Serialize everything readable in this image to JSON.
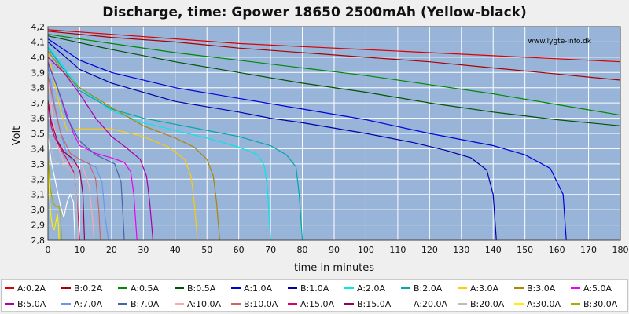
{
  "chart_data": {
    "type": "line",
    "title": "Discharge, time: Gpower 18650 2500mAh (Yellow-black)",
    "xlabel": "time in minutes",
    "ylabel": "Volt",
    "watermark": "www.lygte-info.dk",
    "xlim": [
      0,
      180
    ],
    "ylim": [
      2.8,
      4.2
    ],
    "xticks": [
      0,
      10,
      20,
      30,
      40,
      50,
      60,
      70,
      80,
      90,
      100,
      110,
      120,
      130,
      140,
      150,
      160,
      170,
      180
    ],
    "yticks": [
      {
        "value": 2.8,
        "label": "2,8"
      },
      {
        "value": 2.9,
        "label": "2,9"
      },
      {
        "value": 3.0,
        "label": "3,0"
      },
      {
        "value": 3.1,
        "label": "3,1"
      },
      {
        "value": 3.2,
        "label": "3,2"
      },
      {
        "value": 3.3,
        "label": "3,3"
      },
      {
        "value": 3.4,
        "label": "3,4"
      },
      {
        "value": 3.5,
        "label": "3,5"
      },
      {
        "value": 3.6,
        "label": "3,6"
      },
      {
        "value": 3.7,
        "label": "3,7"
      },
      {
        "value": 3.8,
        "label": "3,8"
      },
      {
        "value": 3.9,
        "label": "3,9"
      },
      {
        "value": 4.0,
        "label": "4,0"
      },
      {
        "value": 4.1,
        "label": "4,1"
      },
      {
        "value": 4.2,
        "label": "4,2"
      }
    ],
    "grid": true,
    "legend_position": "bottom",
    "colors": {
      "plot_background": "#98b4d8",
      "page_background": "#efefef",
      "grid": "#ffffff"
    },
    "series": [
      {
        "name": "A:0.2A",
        "color": "#dd0000",
        "points": [
          [
            0,
            4.18
          ],
          [
            20,
            4.15
          ],
          [
            40,
            4.12
          ],
          [
            60,
            4.09
          ],
          [
            80,
            4.07
          ],
          [
            100,
            4.05
          ],
          [
            120,
            4.03
          ],
          [
            140,
            4.01
          ],
          [
            160,
            3.99
          ],
          [
            180,
            3.97
          ]
        ]
      },
      {
        "name": "B:0.2A",
        "color": "#aa0000",
        "points": [
          [
            0,
            4.17
          ],
          [
            20,
            4.13
          ],
          [
            40,
            4.1
          ],
          [
            60,
            4.06
          ],
          [
            80,
            4.03
          ],
          [
            100,
            4.0
          ],
          [
            120,
            3.97
          ],
          [
            140,
            3.93
          ],
          [
            160,
            3.89
          ],
          [
            180,
            3.85
          ]
        ]
      },
      {
        "name": "A:0.5A",
        "color": "#008800",
        "points": [
          [
            0,
            4.15
          ],
          [
            20,
            4.09
          ],
          [
            40,
            4.03
          ],
          [
            60,
            3.98
          ],
          [
            80,
            3.93
          ],
          [
            100,
            3.88
          ],
          [
            120,
            3.82
          ],
          [
            140,
            3.76
          ],
          [
            160,
            3.69
          ],
          [
            180,
            3.62
          ]
        ]
      },
      {
        "name": "B:0.5A",
        "color": "#005500",
        "points": [
          [
            0,
            4.14
          ],
          [
            20,
            4.05
          ],
          [
            40,
            3.97
          ],
          [
            60,
            3.9
          ],
          [
            80,
            3.83
          ],
          [
            100,
            3.77
          ],
          [
            120,
            3.7
          ],
          [
            140,
            3.64
          ],
          [
            160,
            3.59
          ],
          [
            180,
            3.55
          ]
        ]
      },
      {
        "name": "A:1.0A",
        "color": "#0000dd",
        "points": [
          [
            0,
            4.12
          ],
          [
            10,
            3.98
          ],
          [
            20,
            3.9
          ],
          [
            40,
            3.8
          ],
          [
            60,
            3.73
          ],
          [
            80,
            3.66
          ],
          [
            100,
            3.59
          ],
          [
            120,
            3.5
          ],
          [
            140,
            3.42
          ],
          [
            150,
            3.36
          ],
          [
            158,
            3.27
          ],
          [
            162,
            3.1
          ],
          [
            163,
            2.8
          ]
        ]
      },
      {
        "name": "B:1.0A",
        "color": "#0000aa",
        "points": [
          [
            0,
            4.1
          ],
          [
            10,
            3.92
          ],
          [
            20,
            3.83
          ],
          [
            40,
            3.71
          ],
          [
            60,
            3.64
          ],
          [
            70,
            3.6
          ],
          [
            80,
            3.57
          ],
          [
            100,
            3.5
          ],
          [
            115,
            3.44
          ],
          [
            125,
            3.39
          ],
          [
            133,
            3.34
          ],
          [
            138,
            3.26
          ],
          [
            140,
            3.1
          ],
          [
            141,
            2.8
          ]
        ]
      },
      {
        "name": "A:2.0A",
        "color": "#00e8e8",
        "points": [
          [
            0,
            4.07
          ],
          [
            10,
            3.8
          ],
          [
            20,
            3.65
          ],
          [
            30,
            3.57
          ],
          [
            40,
            3.52
          ],
          [
            50,
            3.47
          ],
          [
            60,
            3.41
          ],
          [
            66,
            3.36
          ],
          [
            68,
            3.29
          ],
          [
            69,
            3.15
          ],
          [
            70,
            2.8
          ]
        ]
      },
      {
        "name": "B:2.0A",
        "color": "#00a8a8",
        "points": [
          [
            0,
            4.06
          ],
          [
            10,
            3.78
          ],
          [
            20,
            3.66
          ],
          [
            30,
            3.6
          ],
          [
            40,
            3.56
          ],
          [
            50,
            3.52
          ],
          [
            60,
            3.48
          ],
          [
            70,
            3.42
          ],
          [
            75,
            3.36
          ],
          [
            78,
            3.28
          ],
          [
            79,
            3.1
          ],
          [
            80,
            2.8
          ]
        ]
      },
      {
        "name": "A:3.0A",
        "color": "#ffcc00",
        "points": [
          [
            0,
            4.03
          ],
          [
            4,
            3.65
          ],
          [
            6,
            3.52
          ],
          [
            10,
            3.53
          ],
          [
            20,
            3.53
          ],
          [
            30,
            3.48
          ],
          [
            38,
            3.41
          ],
          [
            43,
            3.33
          ],
          [
            45,
            3.22
          ],
          [
            46,
            3.05
          ],
          [
            47,
            2.8
          ]
        ]
      },
      {
        "name": "B:3.0A",
        "color": "#aa8800",
        "points": [
          [
            0,
            4.04
          ],
          [
            5,
            3.9
          ],
          [
            10,
            3.8
          ],
          [
            20,
            3.67
          ],
          [
            30,
            3.55
          ],
          [
            40,
            3.47
          ],
          [
            46,
            3.41
          ],
          [
            50,
            3.33
          ],
          [
            52,
            3.22
          ],
          [
            53,
            3.05
          ],
          [
            54,
            2.8
          ]
        ]
      },
      {
        "name": "A:5.0A",
        "color": "#ee00ee",
        "points": [
          [
            0,
            3.97
          ],
          [
            3,
            3.8
          ],
          [
            6,
            3.62
          ],
          [
            8,
            3.5
          ],
          [
            10,
            3.42
          ],
          [
            15,
            3.37
          ],
          [
            20,
            3.34
          ],
          [
            24,
            3.31
          ],
          [
            26,
            3.25
          ],
          [
            27,
            3.1
          ],
          [
            28,
            2.8
          ]
        ]
      },
      {
        "name": "B:5.0A",
        "color": "#aa00aa",
        "points": [
          [
            0,
            4.0
          ],
          [
            5,
            3.9
          ],
          [
            10,
            3.76
          ],
          [
            15,
            3.6
          ],
          [
            20,
            3.48
          ],
          [
            25,
            3.4
          ],
          [
            29,
            3.33
          ],
          [
            31,
            3.22
          ],
          [
            32,
            3.05
          ],
          [
            33,
            2.8
          ]
        ]
      },
      {
        "name": "A:7.0A",
        "color": "#6699ee",
        "points": [
          [
            0,
            3.95
          ],
          [
            2,
            3.7
          ],
          [
            4,
            3.5
          ],
          [
            6,
            3.36
          ],
          [
            8,
            3.31
          ],
          [
            12,
            3.31
          ],
          [
            15,
            3.28
          ],
          [
            17,
            3.18
          ],
          [
            18,
            2.95
          ],
          [
            19,
            2.8
          ]
        ]
      },
      {
        "name": "B:7.0A",
        "color": "#4466aa",
        "points": [
          [
            0,
            3.96
          ],
          [
            3,
            3.8
          ],
          [
            6,
            3.6
          ],
          [
            10,
            3.45
          ],
          [
            15,
            3.36
          ],
          [
            18,
            3.33
          ],
          [
            21,
            3.3
          ],
          [
            23,
            3.18
          ],
          [
            23.5,
            3.0
          ],
          [
            24,
            2.8
          ]
        ]
      },
      {
        "name": "A:10.0A",
        "color": "#ffaaaa",
        "points": [
          [
            0,
            3.85
          ],
          [
            1.5,
            3.6
          ],
          [
            3,
            3.42
          ],
          [
            5,
            3.31
          ],
          [
            8,
            3.3
          ],
          [
            11,
            3.28
          ],
          [
            13,
            3.15
          ],
          [
            14,
            2.95
          ],
          [
            14.5,
            2.8
          ]
        ]
      },
      {
        "name": "B:10.0A",
        "color": "#cc6666",
        "points": [
          [
            0,
            3.88
          ],
          [
            2,
            3.68
          ],
          [
            4,
            3.5
          ],
          [
            7,
            3.37
          ],
          [
            10,
            3.33
          ],
          [
            13,
            3.3
          ],
          [
            15,
            3.2
          ],
          [
            16,
            3.0
          ],
          [
            16.5,
            2.8
          ]
        ]
      },
      {
        "name": "A:15.0A",
        "color": "#dd0066",
        "points": [
          [
            0,
            3.7
          ],
          [
            1,
            3.55
          ],
          [
            2,
            3.48
          ],
          [
            4,
            3.4
          ],
          [
            6,
            3.33
          ],
          [
            8,
            3.25
          ],
          [
            9,
            3.1
          ],
          [
            10,
            2.8
          ]
        ]
      },
      {
        "name": "B:15.0A",
        "color": "#990055",
        "points": [
          [
            0,
            3.72
          ],
          [
            1,
            3.58
          ],
          [
            3,
            3.45
          ],
          [
            5,
            3.38
          ],
          [
            8,
            3.33
          ],
          [
            10,
            3.26
          ],
          [
            11,
            3.1
          ],
          [
            11.5,
            2.8
          ]
        ]
      },
      {
        "name": "A:20.0A",
        "color": "#ffffff",
        "points": [
          [
            0,
            3.48
          ],
          [
            1,
            3.32
          ],
          [
            2,
            3.22
          ],
          [
            3,
            3.12
          ],
          [
            4,
            3.02
          ],
          [
            5,
            2.95
          ],
          [
            6,
            3.05
          ],
          [
            7,
            3.1
          ],
          [
            8,
            3.05
          ],
          [
            8.5,
            2.8
          ]
        ]
      },
      {
        "name": "B:20.0A",
        "color": "#bbbbbb",
        "points": [
          [
            0,
            3.5
          ],
          [
            1,
            3.4
          ],
          [
            2,
            3.32
          ],
          [
            4,
            3.3
          ],
          [
            6,
            3.28
          ],
          [
            8,
            3.24
          ],
          [
            9,
            3.1
          ],
          [
            9.5,
            2.8
          ]
        ]
      },
      {
        "name": "A:30.0A",
        "color": "#ffee00",
        "points": [
          [
            0,
            3.3
          ],
          [
            0.5,
            3.08
          ],
          [
            1,
            2.95
          ],
          [
            1.5,
            2.88
          ],
          [
            2,
            2.87
          ],
          [
            2.5,
            2.92
          ],
          [
            3,
            2.97
          ],
          [
            3.3,
            2.9
          ],
          [
            3.5,
            2.8
          ]
        ]
      },
      {
        "name": "B:30.0A",
        "color": "#aaaa00",
        "points": [
          [
            0,
            3.35
          ],
          [
            0.7,
            3.15
          ],
          [
            1.5,
            3.05
          ],
          [
            2.5,
            3.02
          ],
          [
            3.5,
            3.02
          ],
          [
            4,
            2.95
          ],
          [
            4.3,
            2.8
          ]
        ]
      }
    ]
  }
}
